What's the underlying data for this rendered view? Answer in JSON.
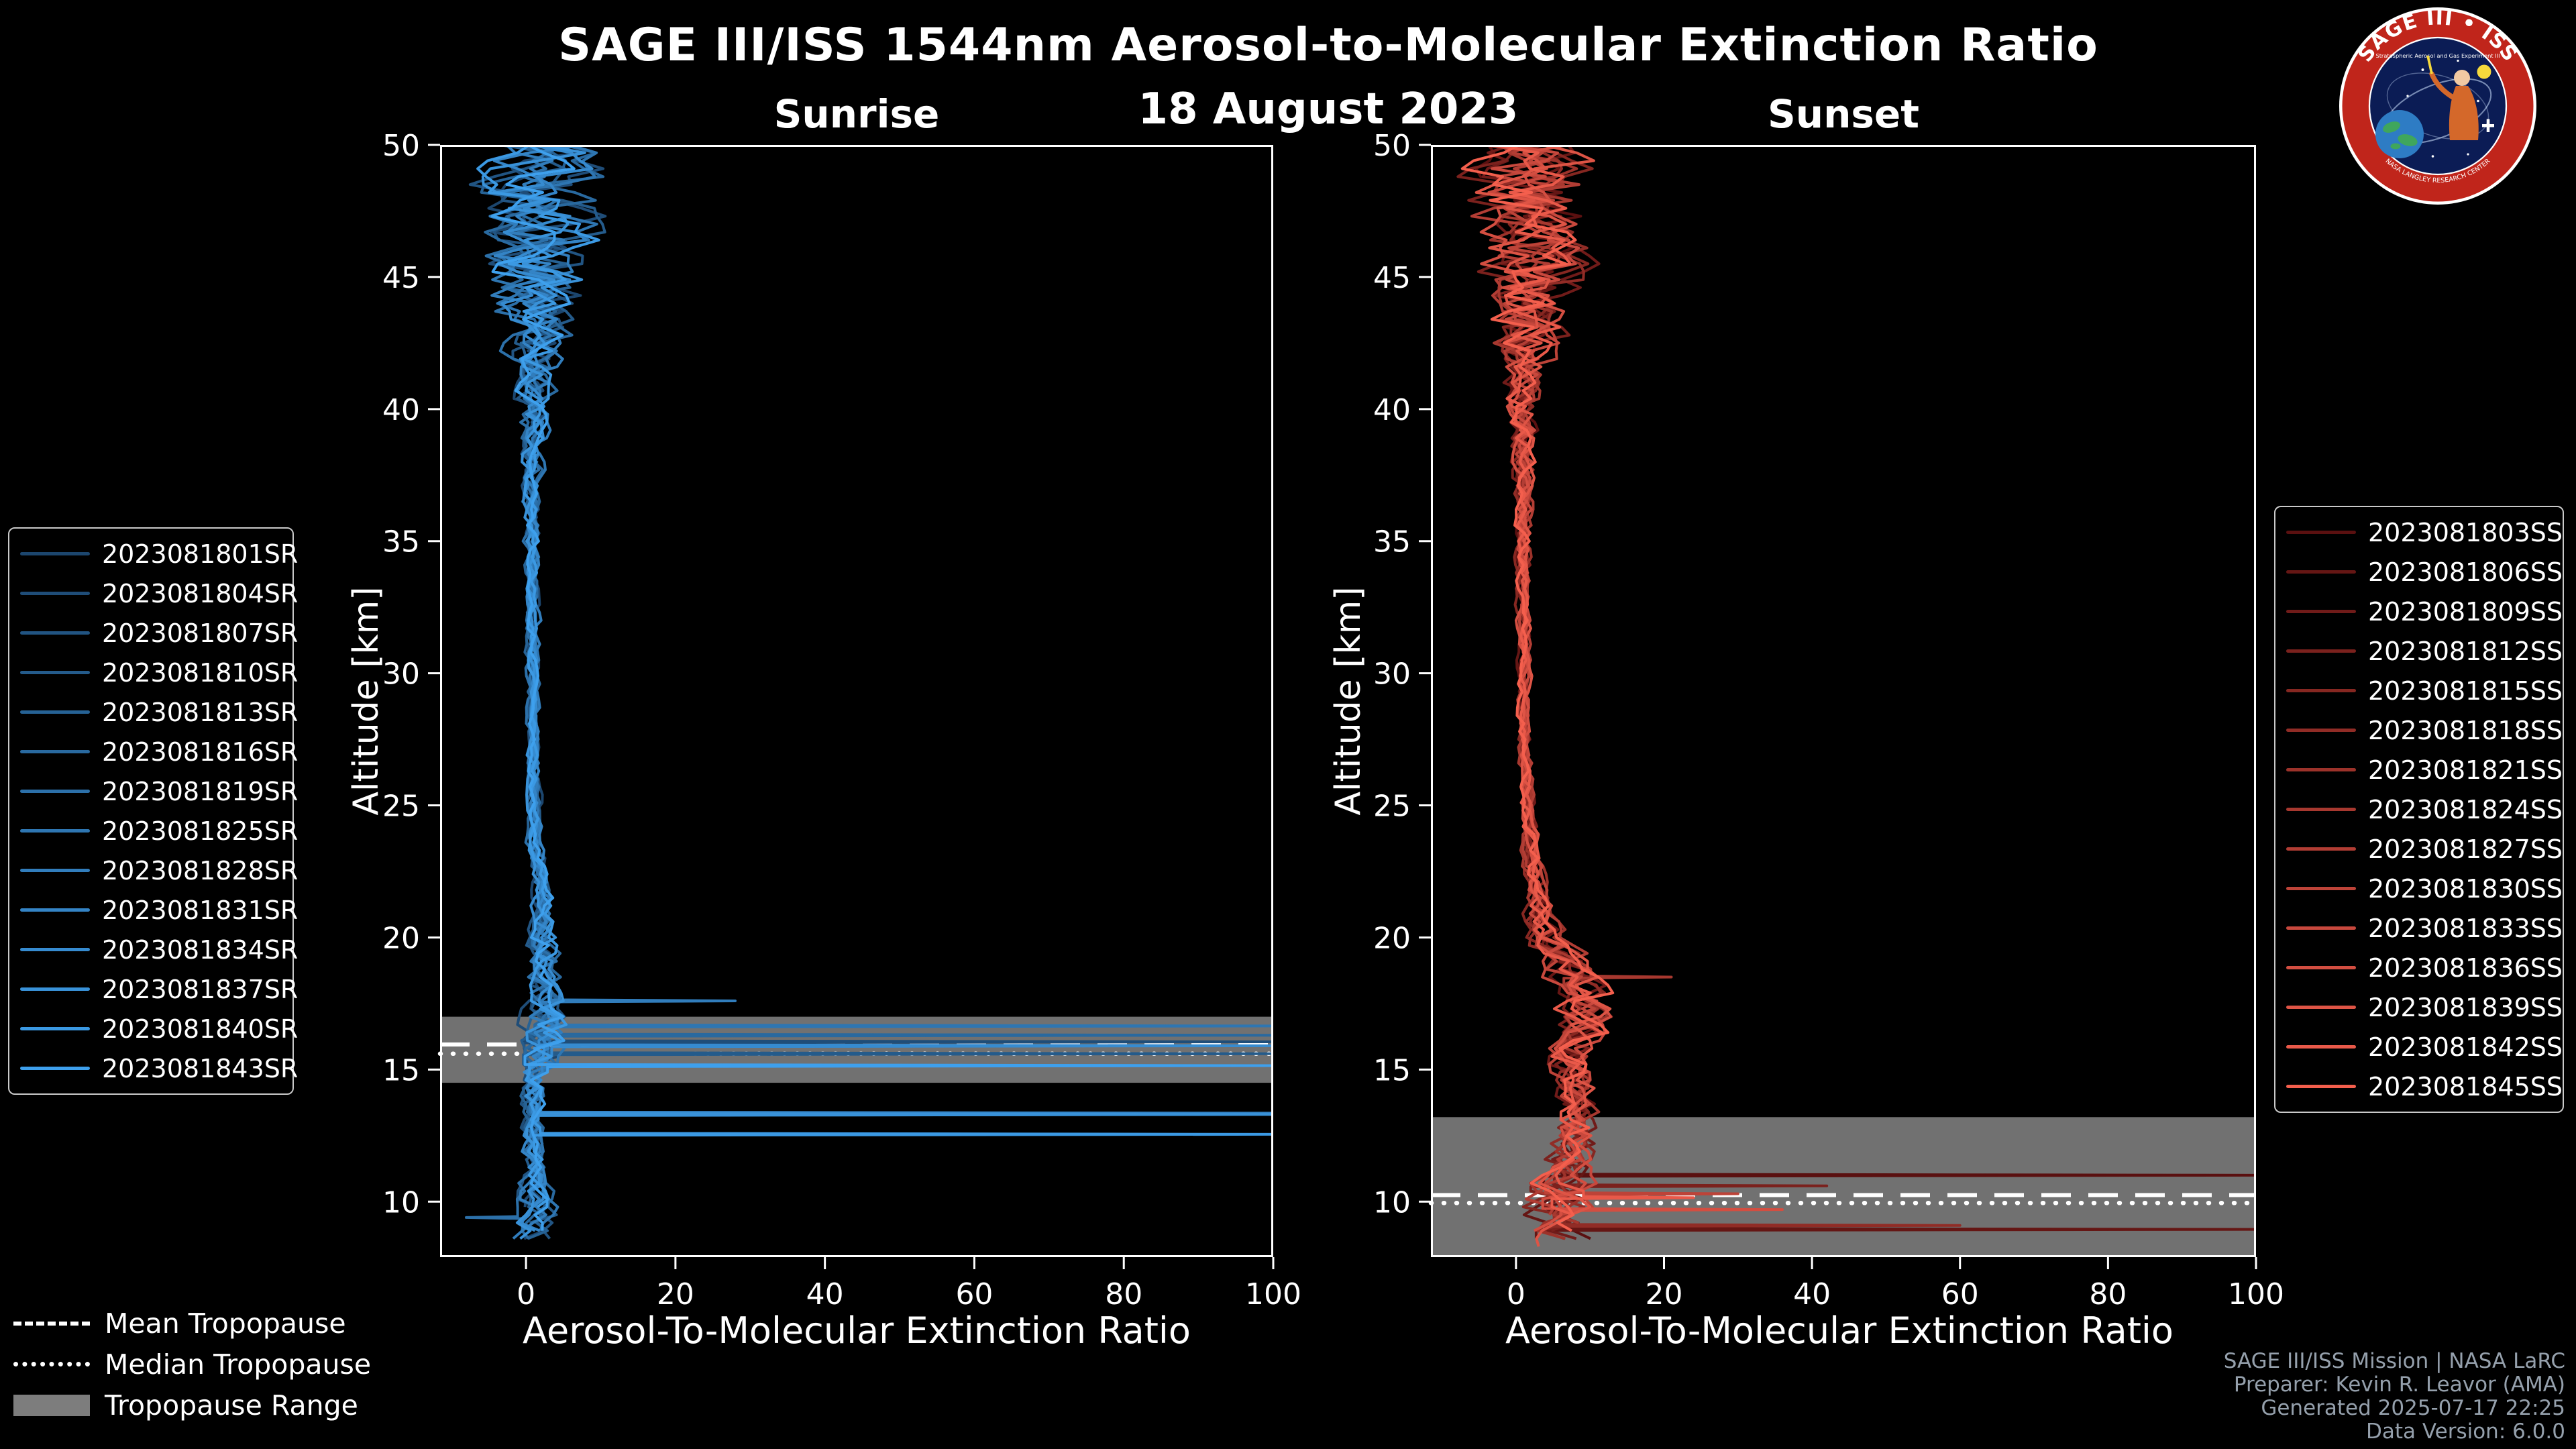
{
  "header": {
    "title": "SAGE III/ISS 1544nm Aerosol-to-Molecular Extinction Ratio",
    "date": "18 August 2023"
  },
  "logo": {
    "top_text": "SAGE III • ISS",
    "small_text": "Stratospheric Aerosol and Gas Experiment III",
    "bottom_text": "NASA LANGLEY RESEARCH CENTER",
    "ring_color": "#c0251b",
    "inner_color": "#0b1c55"
  },
  "tropopause_legend": {
    "band_color": "#7d7d7d",
    "items": [
      {
        "style": "dashed",
        "label": "Mean Tropopause"
      },
      {
        "style": "dotted",
        "label": "Median Tropopause"
      },
      {
        "style": "band",
        "label": "Tropopause Range"
      }
    ]
  },
  "footer": {
    "lines": [
      "SAGE III/ISS Mission | NASA LaRC",
      "Preparer: Kevin R. Leavor (AMA)",
      "Generated 2025-07-17 22:25",
      "Data Version: 6.0.0"
    ]
  },
  "chart_data": {
    "type": "line",
    "title": "SAGE III/ISS 1544nm Aerosol-to-Molecular Extinction Ratio",
    "subtitle": "18 August 2023",
    "xlabel": "Aerosol-To-Molecular Extinction Ratio",
    "ylabel": "Altitude [km]",
    "xlim": [
      -11.5,
      100
    ],
    "ylim": [
      7.9,
      50
    ],
    "xticks": [
      0,
      20,
      40,
      60,
      80,
      100
    ],
    "yticks": [
      10,
      15,
      20,
      25,
      30,
      35,
      40,
      45,
      50
    ],
    "background": "#000000",
    "axis_color": "#ffffff",
    "grid": false,
    "legend_position": "outside-left / outside-right",
    "panels": [
      {
        "key": "sunrise",
        "title": "Sunrise",
        "tropopause": {
          "mean_km": 15.95,
          "median_km": 15.6,
          "range_km": [
            14.5,
            17.0
          ]
        },
        "profile_model": {
          "comment": "Estimated mean extinction-ratio profile and spread read from the plot; series are noisy variations around this with listed spikes.",
          "sample_step_km": 0.3,
          "zmin_base": 8.3,
          "zmin_jitter": 1.3,
          "altitude_anchors": [
            8.3,
            9.5,
            10.5,
            11.5,
            12.5,
            13.5,
            14.5,
            15.5,
            16.5,
            17.5,
            19,
            21,
            24,
            28,
            33,
            37,
            40,
            42,
            44,
            47,
            50
          ],
          "mean_ratio": [
            1.2,
            1.2,
            1.2,
            1.0,
            1.0,
            1.0,
            1.2,
            2.0,
            2.5,
            2.3,
            2.6,
            2.2,
            1.2,
            0.9,
            0.8,
            0.9,
            1.0,
            1.2,
            1.5,
            2.0,
            2.0
          ],
          "noise_amp": [
            3.0,
            3.0,
            2.2,
            1.6,
            1.4,
            1.5,
            2.2,
            3.2,
            3.2,
            2.4,
            2.2,
            1.6,
            0.9,
            0.7,
            0.8,
            1.2,
            2.2,
            3.5,
            6.0,
            8.0,
            9.0
          ]
        },
        "series": [
          {
            "label": "2023081801SR",
            "color": "#1c466e",
            "spikes": []
          },
          {
            "label": "2023081804SR",
            "color": "#1f4d78",
            "spikes": [
              [
                16.05,
                100
              ]
            ]
          },
          {
            "label": "2023081807SR",
            "color": "#215482",
            "spikes": []
          },
          {
            "label": "2023081810SR",
            "color": "#245b8b",
            "spikes": [
              [
                15.6,
                100
              ]
            ]
          },
          {
            "label": "2023081813SR",
            "color": "#266295",
            "spikes": []
          },
          {
            "label": "2023081816SR",
            "color": "#29699f",
            "spikes": [
              [
                16.3,
                100
              ]
            ]
          },
          {
            "label": "2023081819SR",
            "color": "#2c70a9",
            "spikes": [
              [
                9.4,
                -8
              ]
            ]
          },
          {
            "label": "2023081825SR",
            "color": "#2e76b2",
            "spikes": [
              [
                16.65,
                100
              ]
            ]
          },
          {
            "label": "2023081828SR",
            "color": "#317dbc",
            "spikes": [
              [
                17.6,
                28
              ]
            ]
          },
          {
            "label": "2023081831SR",
            "color": "#3484c6",
            "spikes": [
              [
                13.35,
                100
              ]
            ]
          },
          {
            "label": "2023081834SR",
            "color": "#368bd0",
            "spikes": [
              [
                15.9,
                100
              ]
            ]
          },
          {
            "label": "2023081837SR",
            "color": "#3992d9",
            "spikes": [
              [
                13.3,
                100
              ]
            ]
          },
          {
            "label": "2023081840SR",
            "color": "#3b99e3",
            "spikes": [
              [
                12.55,
                100
              ]
            ]
          },
          {
            "label": "2023081843SR",
            "color": "#3ea0ed",
            "spikes": [
              [
                15.15,
                100
              ]
            ]
          }
        ]
      },
      {
        "key": "sunset",
        "title": "Sunset",
        "tropopause": {
          "mean_km": 10.25,
          "median_km": 9.95,
          "range_km": [
            7.9,
            13.2
          ]
        },
        "profile_model": {
          "comment": "Estimated mean extinction-ratio profile and spread read from the plot; series are noisy variations around this with listed spikes.",
          "sample_step_km": 0.3,
          "zmin_base": 8.2,
          "zmin_jitter": 1.3,
          "altitude_anchors": [
            8.2,
            9,
            10,
            11,
            12.5,
            14,
            15.5,
            17,
            18.5,
            20,
            22,
            25,
            28,
            32,
            36,
            39,
            41,
            43,
            45,
            47,
            50
          ],
          "mean_ratio": [
            5,
            5,
            6,
            7,
            8,
            8,
            8,
            9,
            8,
            4,
            2.5,
            1.5,
            1.1,
            0.9,
            0.9,
            1.0,
            1.2,
            1.5,
            2.0,
            2.0,
            2.0
          ],
          "noise_amp": [
            5,
            5,
            5,
            4,
            3,
            3,
            3.5,
            4,
            4,
            2.5,
            1.5,
            1.0,
            0.8,
            0.8,
            1.2,
            2.0,
            3.0,
            5.0,
            7.0,
            8.0,
            9.0
          ]
        },
        "series": [
          {
            "label": "2023081803SS",
            "color": "#5a1010",
            "spikes": [
              [
                11.0,
                100
              ]
            ]
          },
          {
            "label": "2023081806SS",
            "color": "#651614",
            "spikes": [
              [
                8.95,
                100
              ]
            ]
          },
          {
            "label": "2023081809SS",
            "color": "#701b19",
            "spikes": []
          },
          {
            "label": "2023081812SS",
            "color": "#7b211d",
            "spikes": [
              [
                10.6,
                42
              ]
            ]
          },
          {
            "label": "2023081815SS",
            "color": "#862721",
            "spikes": []
          },
          {
            "label": "2023081818SS",
            "color": "#912c26",
            "spikes": [
              [
                9.1,
                60
              ]
            ]
          },
          {
            "label": "2023081821SS",
            "color": "#9c322a",
            "spikes": []
          },
          {
            "label": "2023081824SS",
            "color": "#a7382f",
            "spikes": [
              [
                18.5,
                21
              ]
            ]
          },
          {
            "label": "2023081827SS",
            "color": "#b23d34",
            "spikes": []
          },
          {
            "label": "2023081830SS",
            "color": "#bd4338",
            "spikes": [
              [
                10.3,
                30
              ]
            ]
          },
          {
            "label": "2023081833SS",
            "color": "#c8483d",
            "spikes": []
          },
          {
            "label": "2023081836SS",
            "color": "#d34e41",
            "spikes": [
              [
                9.7,
                36
              ]
            ]
          },
          {
            "label": "2023081839SS",
            "color": "#de5445",
            "spikes": []
          },
          {
            "label": "2023081842SS",
            "color": "#e95949",
            "spikes": [
              [
                10.15,
                24
              ]
            ]
          },
          {
            "label": "2023081845SS",
            "color": "#f45f4d",
            "spikes": []
          }
        ]
      }
    ]
  }
}
